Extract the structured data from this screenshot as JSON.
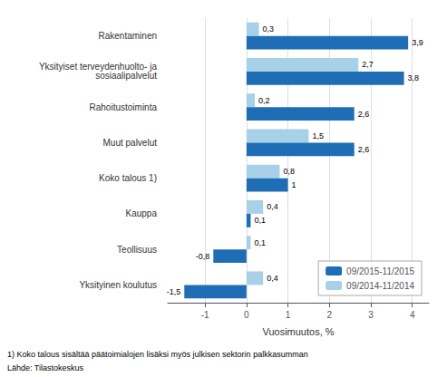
{
  "chart_data": {
    "type": "bar",
    "orientation": "horizontal",
    "categories": [
      "Yksityinen koulutus",
      "Teollisuus",
      "Kauppa",
      "Koko talous 1)",
      "Muut palvelut",
      "Rahoitustoiminta",
      "Yksityiset terveydenhuolto- ja\nsosiaalipalvelut",
      "Rakentaminen"
    ],
    "series": [
      {
        "name": "09/2015-11/2015",
        "color": "#1F6EB5",
        "values": [
          -1.5,
          -0.8,
          0.1,
          1.0,
          2.6,
          2.6,
          3.8,
          3.9
        ],
        "value_labels": [
          "-1,5",
          "-0,8",
          "0,1",
          "1",
          "2,6",
          "2,6",
          "3,8",
          "3,9"
        ]
      },
      {
        "name": "09/2014-11/2014",
        "color": "#A8D0E6",
        "values": [
          0.4,
          0.1,
          0.4,
          0.8,
          1.5,
          0.2,
          2.7,
          0.3
        ],
        "value_labels": [
          "0,4",
          "0,1",
          "0,4",
          "0,8",
          "1,5",
          "0,2",
          "2,7",
          "0,3"
        ]
      }
    ],
    "xlabel": "Vuosimuutos, %",
    "xlim": [
      -1.9,
      4.4
    ],
    "xticks": [
      -1,
      0,
      1,
      2,
      3,
      4
    ],
    "grid": true,
    "legend": "lower right",
    "data_labels": true,
    "annotations": [
      "1) Koko talous sisältää päätoimialojen lisäksi myös julkisen sektorin palkkasumman",
      "Lähde: Tilastokeskus"
    ]
  }
}
